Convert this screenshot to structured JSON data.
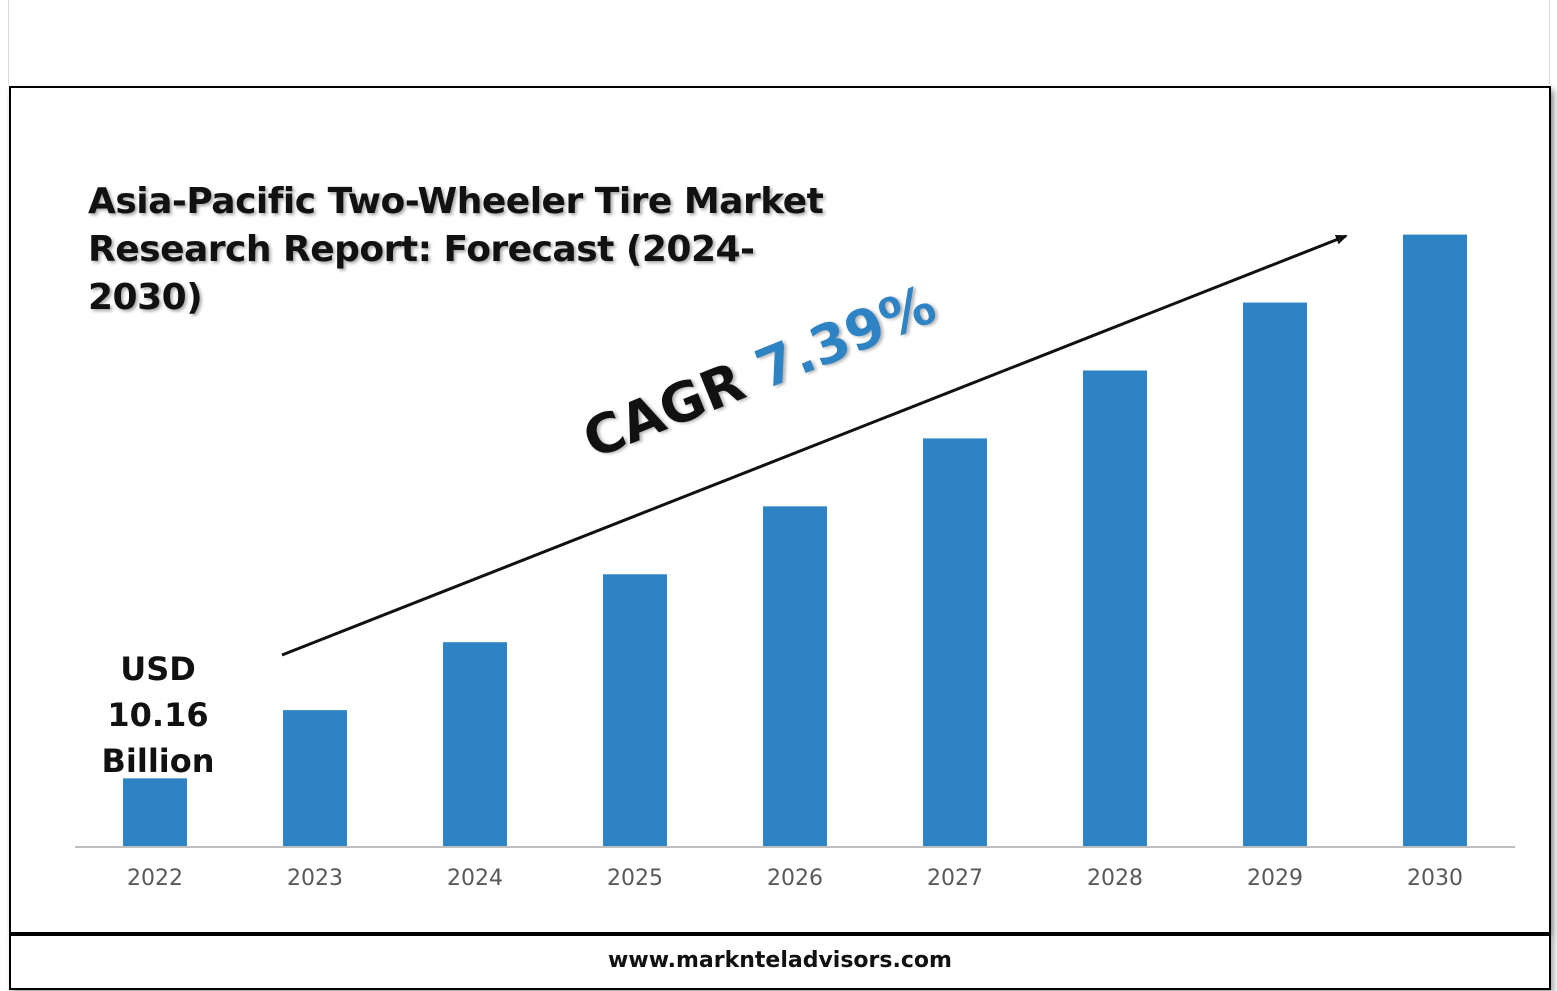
{
  "chart_data": {
    "type": "bar",
    "title": "Asia-Pacific Two-Wheeler Tire Market Research Report: Forecast (2024-2030)",
    "categories": [
      "2022",
      "2023",
      "2024",
      "2025",
      "2026",
      "2027",
      "2028",
      "2029",
      "2030"
    ],
    "values": [
      10.16,
      20.4,
      30.6,
      40.8,
      51.0,
      61.2,
      71.4,
      81.6,
      91.8
    ],
    "bar_color": "#2e83c5",
    "ylim": [
      0,
      100
    ],
    "grid": false,
    "annotations": {
      "first_bar_label": [
        "USD",
        "10.16",
        "Billion"
      ],
      "cagr_label": "CAGR",
      "cagr_value": "7.39%"
    }
  },
  "footer": {
    "website": "www.marknteladvisors.com"
  }
}
